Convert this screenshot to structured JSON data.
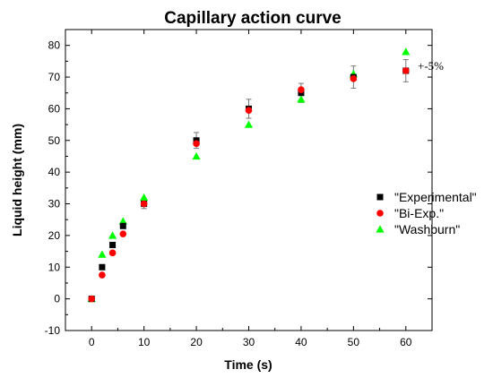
{
  "chart_data": {
    "type": "scatter",
    "title": "Capillary action curve",
    "xlabel": "Time (s)",
    "ylabel": "Liquid height (mm)",
    "xlim": [
      -5,
      65
    ],
    "ylim": [
      -10,
      85
    ],
    "xticks": [
      0,
      10,
      20,
      30,
      40,
      50,
      60
    ],
    "yticks": [
      -10,
      0,
      10,
      20,
      30,
      40,
      50,
      60,
      70,
      80
    ],
    "series": [
      {
        "name": "\"Experimental\"",
        "marker": "square",
        "color": "#000000",
        "x": [
          0,
          2,
          4,
          6,
          10,
          20,
          30,
          40,
          50,
          60
        ],
        "y": [
          0,
          10,
          17,
          23,
          30,
          50,
          60,
          65,
          70,
          72
        ],
        "error": [
          null,
          null,
          null,
          null,
          1.5,
          2.5,
          3,
          3,
          3.5,
          3.5
        ]
      },
      {
        "name": "\"Bi-Exp.\"",
        "marker": "circle",
        "color": "#ff0000",
        "x": [
          0,
          2,
          4,
          6,
          10,
          20,
          30,
          40,
          50,
          60
        ],
        "y": [
          0,
          7.5,
          14.5,
          20.5,
          30,
          49,
          59.5,
          66,
          69.5,
          72
        ]
      },
      {
        "name": "\"Washburn\"",
        "marker": "triangle",
        "color": "#00ff00",
        "x": [
          0,
          2,
          4,
          6,
          10,
          20,
          30,
          40,
          50,
          60
        ],
        "y": [
          0,
          14,
          20,
          24.5,
          32,
          45,
          55,
          63,
          71,
          78
        ]
      }
    ],
    "annotation": "+-5%",
    "legend_position": "right",
    "grid": false
  }
}
